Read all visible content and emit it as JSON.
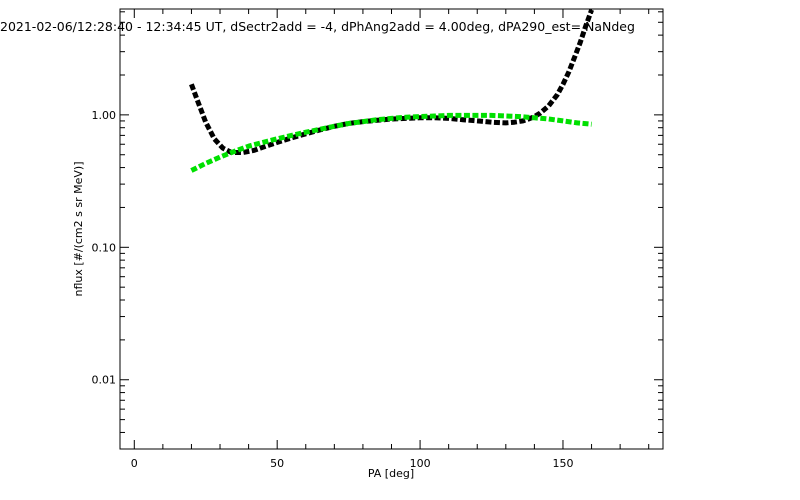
{
  "chart_data": {
    "type": "line",
    "title": "2021-02-06/12:28:40 - 12:34:45 UT, dSectr2add = -4, dPhAng2add = 4.00deg, dPA290_est=   NaNdeg",
    "xlabel": "PA [deg]",
    "ylabel": "nflux [#/(cm2 s sr MeV)]",
    "xlim": [
      -5,
      185
    ],
    "ylim": [
      0.003,
      6.3
    ],
    "yscale": "log",
    "xticks": [
      0,
      50,
      100,
      150
    ],
    "xtick_labels": [
      "0",
      "50",
      "100",
      "150"
    ],
    "yticks": [
      0.01,
      0.1,
      1.0
    ],
    "ytick_labels": [
      "0.01",
      "0.10",
      "1.00"
    ],
    "grid": false,
    "series": [
      {
        "color": "#000000",
        "style": "dashed-thick",
        "x": [
          20,
          22,
          25,
          28,
          31,
          34,
          38,
          42,
          46,
          50,
          55,
          60,
          65,
          70,
          75,
          80,
          85,
          90,
          95,
          100,
          105,
          110,
          115,
          120,
          125,
          130,
          133,
          136,
          138,
          140,
          142,
          145,
          148,
          150,
          152,
          154,
          156,
          158,
          160
        ],
        "values": [
          1.7,
          1.3,
          0.88,
          0.66,
          0.56,
          0.52,
          0.52,
          0.54,
          0.58,
          0.62,
          0.67,
          0.72,
          0.77,
          0.82,
          0.86,
          0.89,
          0.91,
          0.93,
          0.94,
          0.95,
          0.95,
          0.94,
          0.92,
          0.9,
          0.88,
          0.87,
          0.88,
          0.9,
          0.93,
          0.97,
          1.03,
          1.17,
          1.42,
          1.7,
          2.1,
          2.7,
          3.5,
          4.7,
          6.2
        ]
      },
      {
        "color": "#00e000",
        "style": "dashed-thick",
        "x": [
          20,
          25,
          30,
          35,
          40,
          45,
          50,
          55,
          60,
          65,
          70,
          75,
          80,
          85,
          90,
          95,
          100,
          105,
          110,
          115,
          120,
          125,
          130,
          135,
          140,
          145,
          150,
          155,
          160
        ],
        "values": [
          0.38,
          0.43,
          0.48,
          0.53,
          0.58,
          0.62,
          0.66,
          0.7,
          0.74,
          0.78,
          0.82,
          0.86,
          0.89,
          0.92,
          0.94,
          0.96,
          0.97,
          0.98,
          0.99,
          0.99,
          0.99,
          0.99,
          0.98,
          0.97,
          0.95,
          0.93,
          0.9,
          0.87,
          0.85
        ]
      }
    ]
  }
}
